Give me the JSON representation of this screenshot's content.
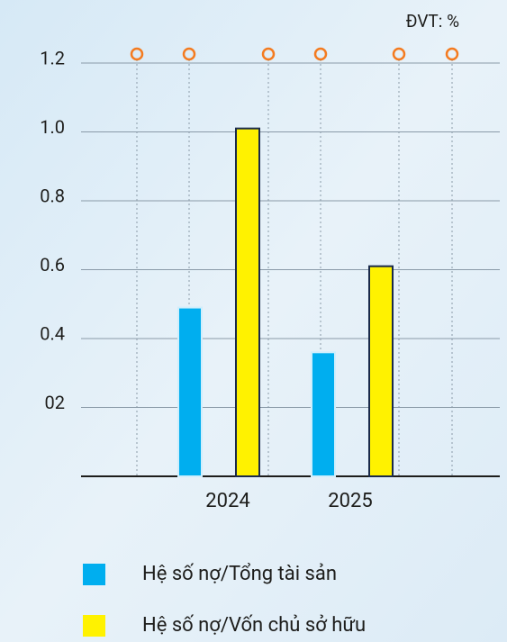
{
  "chart_data": {
    "type": "bar",
    "unit": "ĐVT: %",
    "categories": [
      "2024",
      "2025"
    ],
    "series": [
      {
        "name": "Hệ số nợ/Tổng tài sản",
        "color": "#00aeef",
        "values": [
          0.49,
          0.36
        ]
      },
      {
        "name": "Hệ số nợ/Vốn chủ sở hữu",
        "color": "#fff200",
        "values": [
          1.01,
          0.61
        ]
      }
    ],
    "ylim": [
      0,
      1.2
    ],
    "yticks": [
      {
        "value": 0.2,
        "label": "02"
      },
      0.4,
      0.6,
      0.8,
      {
        "value": 1.0,
        "label": "1.0"
      },
      1.2
    ],
    "grid": true
  }
}
